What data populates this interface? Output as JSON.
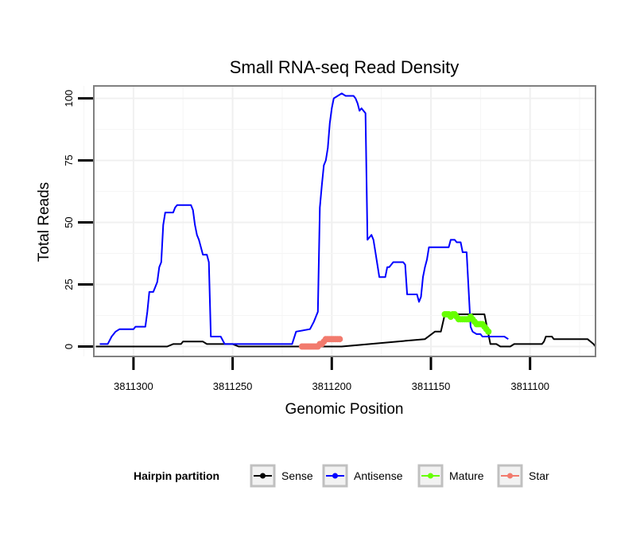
{
  "chart_data": {
    "type": "line",
    "title": "Small RNA-seq Read Density",
    "xlabel": "Genomic Position",
    "ylabel": "Total Reads",
    "xlim": [
      3811320,
      3811067
    ],
    "ylim": [
      -4,
      105
    ],
    "x_reversed": true,
    "grid": true,
    "x_ticks": [
      3811300,
      3811250,
      3811200,
      3811150,
      3811100
    ],
    "x_tick_labels": [
      "3811300",
      "3811250",
      "3811200",
      "3811150",
      "3811100"
    ],
    "y_ticks": [
      0,
      25,
      50,
      75,
      100
    ],
    "y_tick_labels": [
      "0",
      "25",
      "50",
      "75",
      "100"
    ],
    "legend": {
      "title": "Hairpin partition",
      "position": "bottom",
      "entries": [
        "Sense",
        "Antisense",
        "Mature",
        "Star"
      ]
    },
    "series": [
      {
        "name": "Sense",
        "color": "#000000",
        "points": [
          [
            3811319,
            0
          ],
          [
            3811283,
            0
          ],
          [
            3811280,
            1
          ],
          [
            3811276,
            1
          ],
          [
            3811275,
            2
          ],
          [
            3811265,
            2
          ],
          [
            3811263,
            1
          ],
          [
            3811250,
            1
          ],
          [
            3811247,
            0
          ],
          [
            3811210,
            0
          ],
          [
            3811195,
            0
          ],
          [
            3811153,
            3
          ],
          [
            3811148,
            6
          ],
          [
            3811145,
            6
          ],
          [
            3811143,
            13
          ],
          [
            3811123,
            13
          ],
          [
            3811120,
            1
          ],
          [
            3811117,
            1
          ],
          [
            3811115,
            0
          ],
          [
            3811110,
            0
          ],
          [
            3811108,
            1
          ],
          [
            3811094,
            1
          ],
          [
            3811093,
            2
          ],
          [
            3811092,
            4
          ],
          [
            3811089,
            4
          ],
          [
            3811088,
            3
          ],
          [
            3811071,
            3
          ],
          [
            3811068,
            1
          ],
          [
            3811067,
            0
          ]
        ]
      },
      {
        "name": "Antisense",
        "color": "#0000ff",
        "points": [
          [
            3811317,
            1
          ],
          [
            3811313,
            1
          ],
          [
            3811311,
            4
          ],
          [
            3811309,
            6
          ],
          [
            3811307,
            7
          ],
          [
            3811300,
            7
          ],
          [
            3811299,
            8
          ],
          [
            3811294,
            8
          ],
          [
            3811293,
            14
          ],
          [
            3811292,
            22
          ],
          [
            3811290,
            22
          ],
          [
            3811289,
            24
          ],
          [
            3811288,
            26
          ],
          [
            3811287,
            32
          ],
          [
            3811286,
            34
          ],
          [
            3811285,
            49
          ],
          [
            3811284,
            54
          ],
          [
            3811280,
            54
          ],
          [
            3811279,
            56
          ],
          [
            3811278,
            57
          ],
          [
            3811271,
            57
          ],
          [
            3811270,
            55
          ],
          [
            3811269,
            49
          ],
          [
            3811268,
            45
          ],
          [
            3811267,
            43
          ],
          [
            3811265,
            37
          ],
          [
            3811263,
            37
          ],
          [
            3811262,
            34
          ],
          [
            3811261,
            4
          ],
          [
            3811256,
            4
          ],
          [
            3811254,
            1
          ],
          [
            3811227,
            1
          ],
          [
            3811222,
            1
          ],
          [
            3811220,
            1
          ],
          [
            3811218,
            6
          ],
          [
            3811211,
            7
          ],
          [
            3811209,
            10
          ],
          [
            3811207,
            14
          ],
          [
            3811206,
            56
          ],
          [
            3811205,
            65
          ],
          [
            3811204,
            73
          ],
          [
            3811203,
            75
          ],
          [
            3811202,
            80
          ],
          [
            3811201,
            90
          ],
          [
            3811200,
            96
          ],
          [
            3811199,
            100
          ],
          [
            3811197,
            101
          ],
          [
            3811195,
            102
          ],
          [
            3811193,
            101
          ],
          [
            3811189,
            101
          ],
          [
            3811188,
            100
          ],
          [
            3811187,
            98
          ],
          [
            3811186,
            95
          ],
          [
            3811185,
            96
          ],
          [
            3811184,
            95
          ],
          [
            3811183,
            94
          ],
          [
            3811182,
            43
          ],
          [
            3811181,
            44
          ],
          [
            3811180,
            45
          ],
          [
            3811179,
            43
          ],
          [
            3811178,
            38
          ],
          [
            3811176,
            28
          ],
          [
            3811173,
            28
          ],
          [
            3811172,
            32
          ],
          [
            3811171,
            32
          ],
          [
            3811169,
            34
          ],
          [
            3811164,
            34
          ],
          [
            3811163,
            33
          ],
          [
            3811162,
            21
          ],
          [
            3811157,
            21
          ],
          [
            3811156,
            18
          ],
          [
            3811155,
            20
          ],
          [
            3811154,
            28
          ],
          [
            3811153,
            32
          ],
          [
            3811152,
            35
          ],
          [
            3811151,
            40
          ],
          [
            3811141,
            40
          ],
          [
            3811140,
            43
          ],
          [
            3811138,
            43
          ],
          [
            3811137,
            42
          ],
          [
            3811135,
            42
          ],
          [
            3811134,
            38
          ],
          [
            3811132,
            38
          ],
          [
            3811130,
            8
          ],
          [
            3811129,
            6
          ],
          [
            3811127,
            5
          ],
          [
            3811125,
            5
          ],
          [
            3811124,
            4
          ],
          [
            3811115,
            4
          ],
          [
            3811113,
            4
          ],
          [
            3811111,
            3
          ]
        ]
      },
      {
        "name": "Mature",
        "color": "#66ff00",
        "points": [
          [
            3811143,
            13
          ],
          [
            3811142,
            13
          ],
          [
            3811141,
            13
          ],
          [
            3811140,
            12
          ],
          [
            3811139,
            13
          ],
          [
            3811138,
            13
          ],
          [
            3811137,
            12
          ],
          [
            3811136,
            11
          ],
          [
            3811135,
            11
          ],
          [
            3811134,
            11
          ],
          [
            3811133,
            11
          ],
          [
            3811132,
            11
          ],
          [
            3811131,
            11
          ],
          [
            3811130,
            12
          ],
          [
            3811129,
            11
          ],
          [
            3811128,
            10
          ],
          [
            3811127,
            9
          ],
          [
            3811126,
            9
          ],
          [
            3811125,
            9
          ],
          [
            3811124,
            9
          ],
          [
            3811123,
            8
          ],
          [
            3811122,
            7
          ],
          [
            3811121,
            6
          ]
        ]
      },
      {
        "name": "Star",
        "color": "#f27a6d",
        "points": [
          [
            3811215,
            0
          ],
          [
            3811214,
            0
          ],
          [
            3811213,
            0
          ],
          [
            3811212,
            0
          ],
          [
            3811211,
            0
          ],
          [
            3811210,
            0
          ],
          [
            3811209,
            0
          ],
          [
            3811208,
            0
          ],
          [
            3811207,
            0
          ],
          [
            3811206,
            1
          ],
          [
            3811205,
            1
          ],
          [
            3811204,
            2
          ],
          [
            3811203,
            3
          ],
          [
            3811202,
            3
          ],
          [
            3811201,
            3
          ],
          [
            3811200,
            3
          ],
          [
            3811199,
            3
          ],
          [
            3811198,
            3
          ],
          [
            3811197,
            3
          ],
          [
            3811196,
            3
          ]
        ]
      }
    ]
  }
}
